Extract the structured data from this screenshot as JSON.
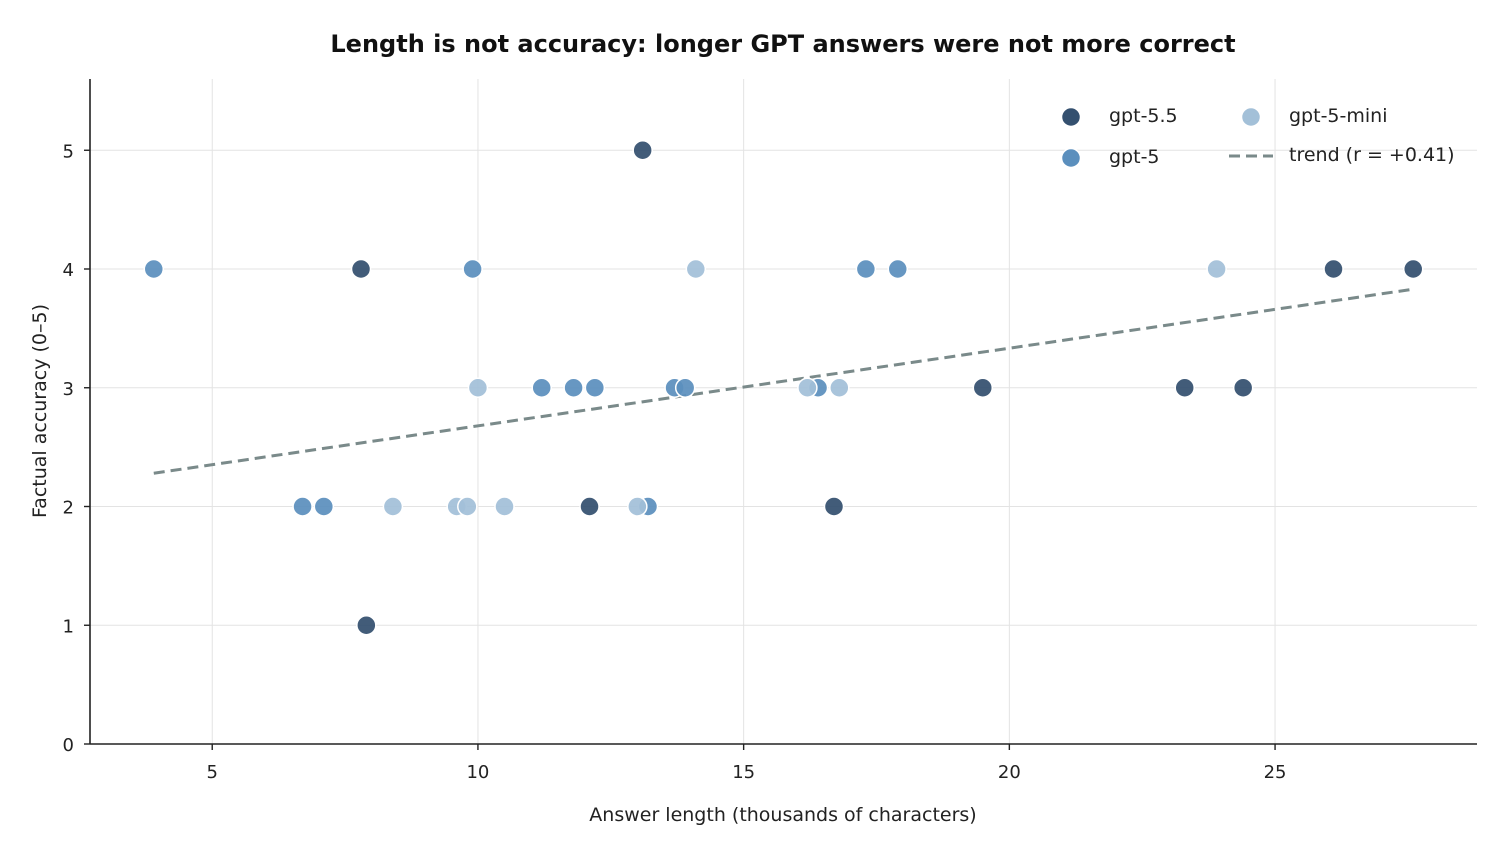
{
  "chart_data": {
    "type": "scatter",
    "title": "Length is not accuracy: longer GPT answers were not more correct",
    "xlabel": "Answer length (thousands of characters)",
    "ylabel": "Factual accuracy (0–5)",
    "xlim": [
      2.7,
      28.8
    ],
    "ylim": [
      0,
      5.6
    ],
    "xticks": [
      5,
      10,
      15,
      20,
      25
    ],
    "yticks": [
      0,
      1,
      2,
      3,
      4,
      5
    ],
    "grid": true,
    "legend_position": "top-right",
    "series": [
      {
        "name": "gpt-5.5",
        "color": "#34506f",
        "points": [
          [
            7.8,
            4
          ],
          [
            7.9,
            1
          ],
          [
            12.1,
            2
          ],
          [
            13.1,
            5
          ],
          [
            16.7,
            2
          ],
          [
            19.5,
            3
          ],
          [
            23.3,
            3
          ],
          [
            24.4,
            3
          ],
          [
            26.1,
            4
          ],
          [
            27.6,
            4
          ]
        ]
      },
      {
        "name": "gpt-5",
        "color": "#5b8fbd",
        "points": [
          [
            3.9,
            4
          ],
          [
            6.7,
            2
          ],
          [
            7.1,
            2
          ],
          [
            9.9,
            4
          ],
          [
            11.2,
            3
          ],
          [
            11.8,
            3
          ],
          [
            12.2,
            3
          ],
          [
            13.2,
            2
          ],
          [
            13.7,
            3
          ],
          [
            13.9,
            3
          ],
          [
            16.4,
            3
          ],
          [
            17.3,
            4
          ],
          [
            17.9,
            4
          ]
        ]
      },
      {
        "name": "gpt-5-mini",
        "color": "#a3c0d8",
        "points": [
          [
            8.4,
            2
          ],
          [
            9.6,
            2
          ],
          [
            9.8,
            2
          ],
          [
            10.0,
            3
          ],
          [
            10.5,
            2
          ],
          [
            13.0,
            2
          ],
          [
            14.1,
            4
          ],
          [
            16.2,
            3
          ],
          [
            16.8,
            3
          ],
          [
            23.9,
            4
          ]
        ]
      }
    ],
    "trend": {
      "name": "trend (r = +0.41)",
      "color": "#7a8a8a",
      "x": [
        3.9,
        27.6
      ],
      "y": [
        2.28,
        3.83
      ]
    }
  }
}
